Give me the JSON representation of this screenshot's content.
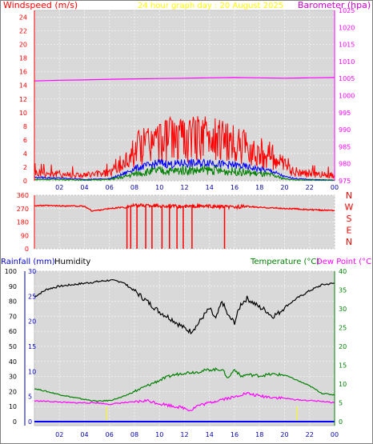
{
  "chart_data": [
    {
      "type": "line",
      "title": "24 hour graph day : 20 August 2025",
      "ylabel_left": "Windspeed (m/s)",
      "ylabel_right": "Barometer (hpa)",
      "x_ticks": [
        "02",
        "04",
        "06",
        "08",
        "10",
        "12",
        "14",
        "16",
        "18",
        "20",
        "22",
        "00"
      ],
      "y_ticks_left": [
        "0",
        "2",
        "4",
        "6",
        "8",
        "10",
        "12",
        "14",
        "16",
        "18",
        "20",
        "22",
        "24"
      ],
      "y_ticks_right": [
        "975",
        "980",
        "985",
        "990",
        "995",
        "1000",
        "1005",
        "1010",
        "1015",
        "1020",
        "1025"
      ],
      "xlim": [
        0,
        24
      ],
      "ylim_left": [
        0,
        25
      ],
      "ylim_right": [
        975,
        1025
      ],
      "grid": true,
      "series": [
        {
          "color": "#ff00ff",
          "axis": "right",
          "x": [
            0,
            2,
            4,
            6,
            8,
            10,
            12,
            14,
            16,
            18,
            20,
            22,
            24
          ],
          "values": [
            1004.3,
            1004.5,
            1004.6,
            1004.8,
            1004.9,
            1005.0,
            1005.1,
            1005.2,
            1005.3,
            1005.2,
            1005.1,
            1005.2,
            1005.3
          ]
        },
        {
          "color": "#ff0000",
          "axis": "left",
          "x": [
            0,
            2,
            4,
            6,
            7,
            8,
            9,
            10,
            11,
            12,
            13,
            14,
            15,
            16,
            17,
            18,
            19,
            20,
            20.5,
            22,
            24
          ],
          "values": [
            1.2,
            1.0,
            0.8,
            1.2,
            2.2,
            4.5,
            5.5,
            5.8,
            6.2,
            5.8,
            6.3,
            6.5,
            6.0,
            5.2,
            4.8,
            4.2,
            3.5,
            2.2,
            1.5,
            1.0,
            0.8
          ]
        },
        {
          "color": "#0000ff",
          "axis": "left",
          "x": [
            0,
            2,
            4,
            6,
            7,
            8,
            9,
            10,
            11,
            12,
            13,
            14,
            15,
            16,
            17,
            18,
            19,
            20,
            21,
            22,
            24
          ],
          "values": [
            0.5,
            0.4,
            0.2,
            0.3,
            0.9,
            1.8,
            2.2,
            2.6,
            2.4,
            2.6,
            2.5,
            2.8,
            2.4,
            2.3,
            2.0,
            1.7,
            1.4,
            0.6,
            0.3,
            0.2,
            0.1
          ]
        },
        {
          "color": "#008000",
          "axis": "left",
          "x": [
            0,
            2,
            4,
            6,
            7,
            8,
            9,
            10,
            11,
            12,
            13,
            14,
            15,
            16,
            17,
            18,
            19,
            20,
            21,
            22,
            24
          ],
          "values": [
            0.2,
            0.2,
            0.1,
            0.2,
            0.5,
            1.0,
            1.3,
            1.5,
            1.4,
            1.6,
            1.5,
            1.6,
            1.4,
            1.4,
            1.2,
            1.0,
            0.8,
            0.3,
            0.1,
            0.1,
            0.05
          ]
        }
      ]
    },
    {
      "type": "line",
      "ylabel_right": "N W S E N",
      "y_ticks_left": [
        "0",
        "90",
        "180",
        "270",
        "360"
      ],
      "ylim": [
        0,
        360
      ],
      "xlim": [
        0,
        24
      ],
      "x": [
        0,
        1,
        2,
        3,
        4,
        4.6,
        5,
        6,
        7,
        8,
        9,
        10,
        11,
        12,
        13,
        14,
        15,
        16,
        17,
        18,
        19,
        20,
        21,
        22,
        23,
        24
      ],
      "values": [
        290,
        290,
        288,
        288,
        285,
        255,
        258,
        270,
        278,
        290,
        292,
        288,
        285,
        283,
        286,
        285,
        282,
        280,
        285,
        278,
        275,
        270,
        268,
        262,
        260,
        258
      ],
      "spikes_x": [
        7.4,
        7.7,
        8.2,
        8.9,
        9.4,
        10.2,
        10.8,
        11.4,
        11.9,
        12.6,
        15.2
      ],
      "spikes_to": 0,
      "grid": true,
      "series_color": "#ff0000"
    },
    {
      "type": "line",
      "ylabel_left": "Rainfall (mm)",
      "ylabel_left2": "Humidity",
      "ylabel_right": "Temperature (°C)",
      "ylabel_right2": "Dew Point (°C)",
      "x_ticks": [
        "02",
        "04",
        "06",
        "08",
        "10",
        "12",
        "14",
        "16",
        "18",
        "20",
        "22",
        "00"
      ],
      "y_ticks_humidity": [
        "0",
        "10",
        "20",
        "30",
        "40",
        "50",
        "60",
        "70",
        "80",
        "90",
        "100"
      ],
      "y_ticks_rain": [
        "0",
        "5",
        "10",
        "15",
        "20",
        "25",
        "30"
      ],
      "y_ticks_temp": [
        "0",
        "5",
        "10",
        "15",
        "20",
        "25",
        "30",
        "35",
        "40"
      ],
      "xlim": [
        0,
        24
      ],
      "ylim_humidity": [
        0,
        100
      ],
      "ylim_rain": [
        0,
        30
      ],
      "ylim_temp": [
        0,
        40
      ],
      "grid": true,
      "series": [
        {
          "color": "#000000",
          "axis": "humidity",
          "x": [
            0,
            1,
            2,
            3,
            4,
            5,
            6,
            7,
            8,
            9,
            10,
            11,
            12,
            12.5,
            13,
            13.5,
            14,
            14.5,
            15,
            15.5,
            16,
            16.5,
            17,
            17.5,
            18,
            18.5,
            19,
            19.5,
            20,
            21,
            22,
            23,
            24
          ],
          "values": [
            83,
            88,
            90,
            91,
            92,
            93,
            94,
            93,
            87,
            80,
            73,
            68,
            62,
            60,
            64,
            70,
            75,
            68,
            80,
            70,
            66,
            78,
            82,
            79,
            76,
            74,
            70,
            72,
            76,
            82,
            87,
            91,
            92
          ]
        },
        {
          "color": "#008000",
          "axis": "temp",
          "x": [
            0,
            1,
            2,
            3,
            4,
            5,
            6,
            7,
            8,
            9,
            10,
            11,
            12,
            13,
            14,
            15,
            15.5,
            16,
            16.5,
            17,
            18,
            19,
            20,
            21,
            22,
            23,
            24
          ],
          "values": [
            8.8,
            8.0,
            7.2,
            6.5,
            5.9,
            5.4,
            5.6,
            6.5,
            8.0,
            9.5,
            11.0,
            12.3,
            13.0,
            13.2,
            13.8,
            13.9,
            11.5,
            14.0,
            12.0,
            12.5,
            12.2,
            12.6,
            12.4,
            11.0,
            9.5,
            7.5,
            7.1
          ]
        },
        {
          "color": "#ff00ff",
          "axis": "temp",
          "x": [
            0,
            1,
            2,
            3,
            4,
            5,
            6,
            7,
            8,
            9,
            10,
            11,
            12,
            12.5,
            13,
            14,
            15,
            16,
            16.5,
            17,
            18,
            19,
            20,
            21,
            22,
            23,
            24
          ],
          "values": [
            5.5,
            5.4,
            5.2,
            5.0,
            5.0,
            5.0,
            4.6,
            5.0,
            5.2,
            5.6,
            4.8,
            4.2,
            3.6,
            3.0,
            4.2,
            5.0,
            6.0,
            6.5,
            7.2,
            7.5,
            6.8,
            6.5,
            6.2,
            5.8,
            5.6,
            5.4,
            5.0
          ]
        },
        {
          "color": "#0000ff",
          "axis": "rain",
          "x": [
            0,
            24
          ],
          "values": [
            0,
            0
          ]
        }
      ]
    }
  ]
}
